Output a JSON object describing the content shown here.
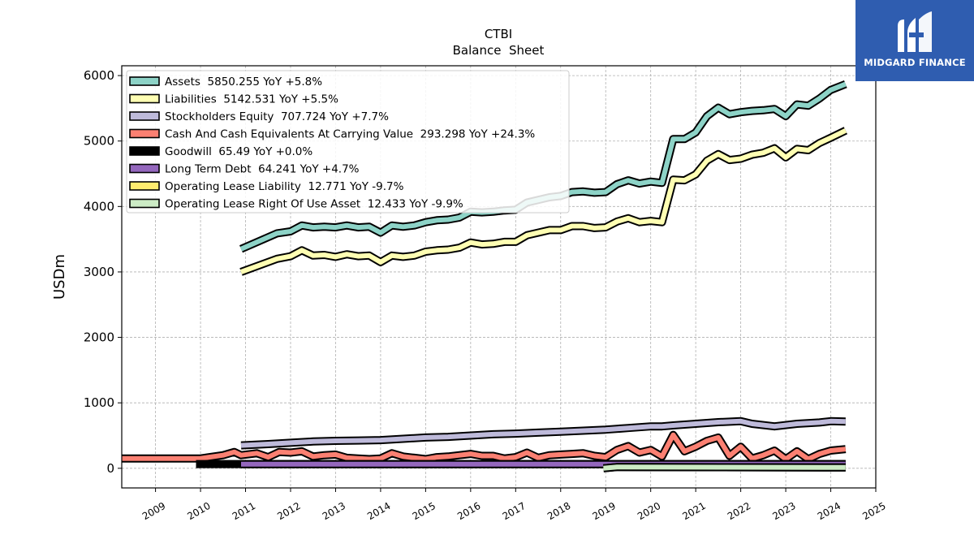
{
  "logo": {
    "text": "MIDGARD FINANCE",
    "color": "#2f5db0"
  },
  "chart_data": {
    "type": "line",
    "title": "CTBI",
    "subtitle": "Balance  Sheet",
    "ylabel": "USDm",
    "xlabel": "",
    "xlim": [
      2008.25,
      2025.0
    ],
    "ylim": [
      -300,
      6150
    ],
    "x_ticks": [
      2009,
      2010,
      2011,
      2012,
      2013,
      2014,
      2015,
      2016,
      2017,
      2018,
      2019,
      2020,
      2021,
      2022,
      2023,
      2024,
      2025
    ],
    "y_ticks": [
      0,
      1000,
      2000,
      3000,
      4000,
      5000,
      6000
    ],
    "grid": true,
    "legend_position": "top-left",
    "series": [
      {
        "name": "Assets",
        "legend": "Assets  5850.255 YoY +5.8%",
        "color": "#8dd3c7",
        "x": [
          2010.9,
          2011.7,
          2012.0,
          2012.25,
          2012.5,
          2012.75,
          2013.0,
          2013.25,
          2013.5,
          2013.75,
          2014.0,
          2014.25,
          2014.5,
          2014.75,
          2015.0,
          2015.25,
          2015.5,
          2015.75,
          2016.0,
          2016.25,
          2016.5,
          2016.75,
          2017.0,
          2017.25,
          2017.5,
          2017.75,
          2018.0,
          2018.25,
          2018.5,
          2018.75,
          2019.0,
          2019.25,
          2019.5,
          2019.75,
          2020.0,
          2020.25,
          2020.5,
          2020.75,
          2021.0,
          2021.25,
          2021.5,
          2021.75,
          2022.0,
          2022.25,
          2022.5,
          2022.75,
          2023.0,
          2023.25,
          2023.5,
          2023.75,
          2024.0,
          2024.33
        ],
        "y": [
          3350,
          3590,
          3620,
          3710,
          3680,
          3690,
          3680,
          3710,
          3680,
          3690,
          3600,
          3710,
          3690,
          3710,
          3760,
          3790,
          3800,
          3830,
          3920,
          3910,
          3920,
          3940,
          3950,
          4060,
          4100,
          4140,
          4160,
          4220,
          4230,
          4210,
          4220,
          4340,
          4400,
          4350,
          4380,
          4360,
          5030,
          5030,
          5130,
          5380,
          5510,
          5410,
          5440,
          5460,
          5470,
          5490,
          5380,
          5560,
          5540,
          5650,
          5780,
          5870
        ]
      },
      {
        "name": "Liabilities",
        "legend": "Liabilities  5142.531 YoY +5.5%",
        "color": "#ffffb3",
        "x": [
          2010.9,
          2011.7,
          2012.0,
          2012.25,
          2012.5,
          2012.75,
          2013.0,
          2013.25,
          2013.5,
          2013.75,
          2014.0,
          2014.25,
          2014.5,
          2014.75,
          2015.0,
          2015.25,
          2015.5,
          2015.75,
          2016.0,
          2016.25,
          2016.5,
          2016.75,
          2017.0,
          2017.25,
          2017.5,
          2017.75,
          2018.0,
          2018.25,
          2018.5,
          2018.75,
          2019.0,
          2019.25,
          2019.5,
          2019.75,
          2020.0,
          2020.25,
          2020.5,
          2020.75,
          2021.0,
          2021.25,
          2021.5,
          2021.75,
          2022.0,
          2022.25,
          2022.5,
          2022.75,
          2023.0,
          2023.25,
          2023.5,
          2023.75,
          2024.0,
          2024.33
        ],
        "y": [
          3000,
          3200,
          3240,
          3330,
          3250,
          3260,
          3230,
          3270,
          3240,
          3250,
          3150,
          3250,
          3230,
          3250,
          3310,
          3330,
          3340,
          3370,
          3450,
          3420,
          3430,
          3460,
          3460,
          3560,
          3600,
          3640,
          3640,
          3700,
          3700,
          3670,
          3680,
          3770,
          3820,
          3760,
          3780,
          3760,
          4410,
          4400,
          4490,
          4700,
          4800,
          4710,
          4730,
          4790,
          4820,
          4890,
          4750,
          4880,
          4860,
          4970,
          5050,
          5160
        ]
      },
      {
        "name": "Stockholders Equity",
        "legend": "Stockholders Equity  707.724 YoY +7.7%",
        "color": "#bebada",
        "x": [
          2010.9,
          2011.5,
          2012.0,
          2012.5,
          2013.0,
          2013.5,
          2014.0,
          2014.5,
          2015.0,
          2015.5,
          2016.0,
          2016.5,
          2017.0,
          2017.5,
          2018.0,
          2018.5,
          2019.0,
          2019.5,
          2020.0,
          2020.25,
          2020.5,
          2021.0,
          2021.5,
          2022.0,
          2022.25,
          2022.75,
          2023.25,
          2023.75,
          2024.0,
          2024.33
        ],
        "y": [
          350,
          370,
          390,
          410,
          420,
          425,
          430,
          450,
          470,
          480,
          500,
          520,
          530,
          545,
          560,
          575,
          590,
          615,
          640,
          640,
          655,
          680,
          705,
          720,
          680,
          640,
          680,
          700,
          720,
          715
        ]
      },
      {
        "name": "Cash And Cash Equivalents At Carrying Value",
        "legend": "Cash And Cash Equivalents At Carrying Value  293.298 YoY +24.3%",
        "color": "#fb8072",
        "x": [
          2008.25,
          2009.0,
          2009.5,
          2010.0,
          2010.5,
          2010.75,
          2010.9,
          2011.25,
          2011.5,
          2011.75,
          2012.0,
          2012.25,
          2012.5,
          2012.75,
          2013.0,
          2013.25,
          2013.5,
          2013.75,
          2014.0,
          2014.25,
          2014.5,
          2014.75,
          2015.0,
          2015.25,
          2015.5,
          2015.75,
          2016.0,
          2016.25,
          2016.5,
          2016.75,
          2017.0,
          2017.25,
          2017.5,
          2017.75,
          2018.0,
          2018.25,
          2018.5,
          2018.75,
          2019.0,
          2019.25,
          2019.5,
          2019.75,
          2020.0,
          2020.25,
          2020.5,
          2020.75,
          2021.0,
          2021.25,
          2021.5,
          2021.75,
          2022.0,
          2022.25,
          2022.5,
          2022.75,
          2023.0,
          2023.25,
          2023.5,
          2023.75,
          2024.0,
          2024.33
        ],
        "y": [
          150,
          150,
          150,
          150,
          200,
          250,
          200,
          230,
          170,
          250,
          240,
          260,
          180,
          200,
          210,
          160,
          150,
          140,
          150,
          230,
          180,
          160,
          140,
          170,
          180,
          200,
          220,
          190,
          190,
          150,
          170,
          240,
          160,
          200,
          210,
          220,
          230,
          190,
          170,
          280,
          340,
          240,
          280,
          180,
          510,
          260,
          330,
          420,
          470,
          190,
          330,
          150,
          200,
          270,
          140,
          260,
          140,
          220,
          270,
          293
        ]
      },
      {
        "name": "Goodwill",
        "legend": "Goodwill  65.49 YoY +0.0%",
        "color": "#000000",
        "x": [
          2009.9,
          2024.33
        ],
        "y": [
          65,
          65
        ]
      },
      {
        "name": "Long Term Debt",
        "legend": "Long Term Debt  64.241 YoY +4.7%",
        "color": "#9467bd",
        "x": [
          2010.9,
          2024.33
        ],
        "y": [
          64,
          64
        ]
      },
      {
        "name": "Operating Lease Liability",
        "legend": "Operating Lease Liability  12.771 YoY -9.7%",
        "color": "#ffed6f",
        "x": [
          2018.95,
          2019.25,
          2024.33
        ],
        "y": [
          0,
          20,
          13
        ]
      },
      {
        "name": "Operating Lease Right Of Use Asset",
        "legend": "Operating Lease Right Of Use Asset  12.433 YoY -9.9%",
        "color": "#ccebc5",
        "x": [
          2018.95,
          2019.25,
          2024.33
        ],
        "y": [
          0,
          19,
          12
        ]
      }
    ]
  }
}
